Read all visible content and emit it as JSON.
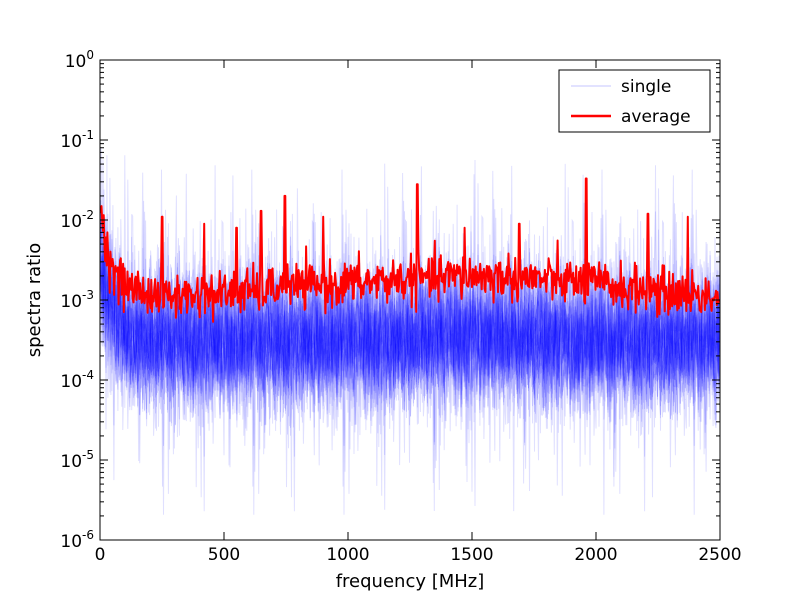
{
  "chart_data": {
    "type": "line",
    "title": "",
    "xlabel": "frequency [MHz]",
    "ylabel": "spectra ratio",
    "xlim": [
      0,
      2500
    ],
    "ylim": [
      1e-06,
      1
    ],
    "yscale": "log",
    "grid": false,
    "legend_position": "top-right",
    "x_ticks": [
      0,
      500,
      1000,
      1500,
      2000,
      2500
    ],
    "x_tick_labels": [
      "0",
      "500",
      "1000",
      "1500",
      "2000",
      "2500"
    ],
    "y_ticks": [
      {
        "value": 1e-06,
        "base": "10",
        "exp": "-6"
      },
      {
        "value": 1e-05,
        "base": "10",
        "exp": "-5"
      },
      {
        "value": 0.0001,
        "base": "10",
        "exp": "-4"
      },
      {
        "value": 0.001,
        "base": "10",
        "exp": "-3"
      },
      {
        "value": 0.01,
        "base": "10",
        "exp": "-2"
      },
      {
        "value": 0.1,
        "base": "10",
        "exp": "-1"
      },
      {
        "value": 1,
        "base": "10",
        "exp": "0"
      }
    ],
    "series": [
      {
        "name": "single",
        "color": "#0000ff",
        "style": "many faint overlapping traces (alpha ~0.1)",
        "median_x": [
          0,
          50,
          100,
          200,
          500,
          1000,
          1500,
          2000,
          2500
        ],
        "median_y": [
          0.003,
          0.0008,
          0.0004,
          0.0003,
          0.0003,
          0.0003,
          0.00035,
          0.0003,
          0.0003
        ],
        "spread_upper_y": [
          0.1,
          0.02,
          0.01,
          0.01,
          0.01,
          0.015,
          0.015,
          0.012,
          0.01
        ],
        "spread_lower_y": [
          0.0001,
          3e-05,
          2e-05,
          2e-05,
          2e-05,
          2e-05,
          2e-05,
          2e-05,
          2e-05
        ]
      },
      {
        "name": "average",
        "color": "#ff0000",
        "x": [
          0,
          10,
          30,
          60,
          100,
          200,
          300,
          500,
          700,
          1000,
          1200,
          1500,
          1700,
          2000,
          2200,
          2500
        ],
        "y": [
          0.03,
          0.008,
          0.004,
          0.002,
          0.0015,
          0.0012,
          0.0011,
          0.0012,
          0.0014,
          0.0016,
          0.0018,
          0.002,
          0.0019,
          0.0016,
          0.0013,
          0.0011
        ],
        "spike_x": [
          250,
          420,
          550,
          650,
          745,
          900,
          1280,
          1470,
          1690,
          1960,
          2210,
          2370
        ],
        "spike_y": [
          0.011,
          0.009,
          0.008,
          0.013,
          0.02,
          0.011,
          0.028,
          0.008,
          0.009,
          0.033,
          0.012,
          0.011
        ]
      }
    ]
  }
}
